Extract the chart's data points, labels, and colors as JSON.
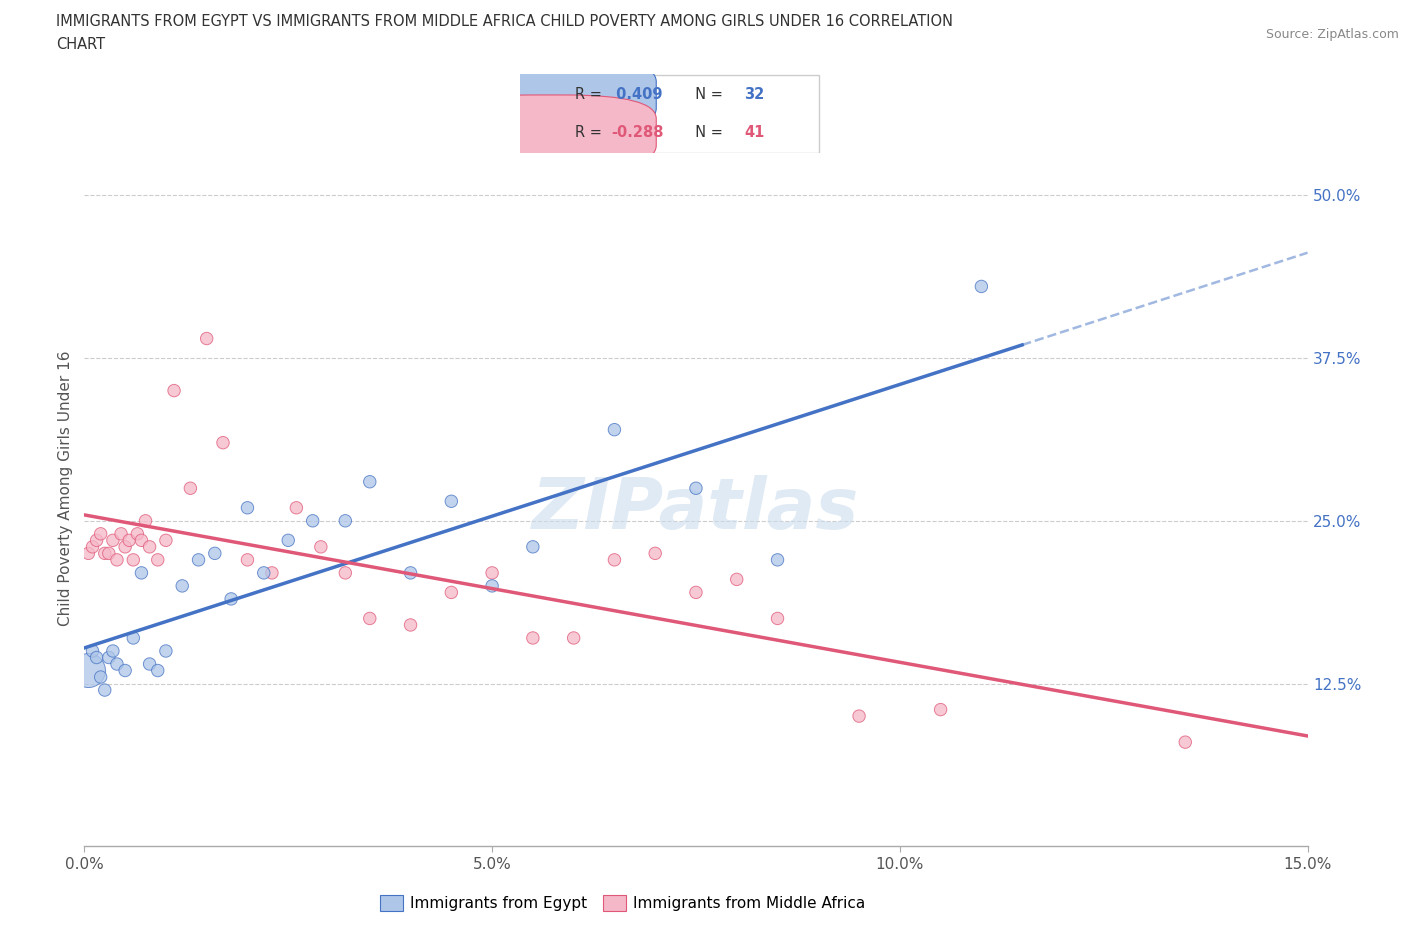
{
  "title_line1": "IMMIGRANTS FROM EGYPT VS IMMIGRANTS FROM MIDDLE AFRICA CHILD POVERTY AMONG GIRLS UNDER 16 CORRELATION",
  "title_line2": "CHART",
  "source": "Source: ZipAtlas.com",
  "ylabel": "Child Poverty Among Girls Under 16",
  "xlim": [
    0.0,
    15.0
  ],
  "ylim": [
    0.0,
    55.0
  ],
  "xticks": [
    0.0,
    5.0,
    10.0,
    15.0
  ],
  "xticklabels": [
    "0.0%",
    "5.0%",
    "10.0%",
    "15.0%"
  ],
  "yticks": [
    12.5,
    25.0,
    37.5,
    50.0
  ],
  "yticklabels": [
    "12.5%",
    "25.0%",
    "37.5%",
    "50.0%"
  ],
  "r_egypt": 0.409,
  "n_egypt": 32,
  "r_africa": -0.288,
  "n_africa": 41,
  "color_egypt": "#aec6e8",
  "color_africa": "#f5b8c8",
  "trend_color_egypt": "#4472c4",
  "trend_color_africa": "#e05878",
  "watermark": "ZIPatlas",
  "watermark_color": "#ccdded",
  "egypt_x": [
    0.05,
    0.1,
    0.15,
    0.2,
    0.25,
    0.3,
    0.35,
    0.4,
    0.5,
    0.6,
    0.7,
    0.8,
    0.9,
    1.0,
    1.2,
    1.4,
    1.6,
    1.8,
    2.0,
    2.2,
    2.5,
    2.8,
    3.2,
    3.5,
    4.0,
    4.5,
    5.0,
    5.5,
    6.5,
    7.5,
    8.5,
    11.0
  ],
  "egypt_y": [
    13.5,
    15.0,
    14.5,
    13.0,
    12.0,
    14.5,
    15.0,
    14.0,
    13.5,
    16.0,
    21.0,
    14.0,
    13.5,
    15.0,
    20.0,
    22.0,
    22.5,
    19.0,
    26.0,
    21.0,
    23.5,
    25.0,
    25.0,
    28.0,
    21.0,
    26.5,
    20.0,
    23.0,
    32.0,
    27.5,
    22.0,
    43.0
  ],
  "egypt_size": [
    600,
    80,
    80,
    80,
    80,
    80,
    80,
    80,
    80,
    80,
    80,
    80,
    80,
    80,
    80,
    80,
    80,
    80,
    80,
    80,
    80,
    80,
    80,
    80,
    80,
    80,
    80,
    80,
    80,
    80,
    80,
    80
  ],
  "africa_x": [
    0.05,
    0.1,
    0.15,
    0.2,
    0.25,
    0.3,
    0.35,
    0.4,
    0.45,
    0.5,
    0.55,
    0.6,
    0.65,
    0.7,
    0.75,
    0.8,
    0.9,
    1.0,
    1.1,
    1.3,
    1.5,
    1.7,
    2.0,
    2.3,
    2.6,
    2.9,
    3.2,
    3.5,
    4.0,
    4.5,
    5.0,
    5.5,
    6.0,
    6.5,
    7.0,
    7.5,
    8.0,
    8.5,
    9.5,
    10.5,
    13.5
  ],
  "africa_y": [
    22.5,
    23.0,
    23.5,
    24.0,
    22.5,
    22.5,
    23.5,
    22.0,
    24.0,
    23.0,
    23.5,
    22.0,
    24.0,
    23.5,
    25.0,
    23.0,
    22.0,
    23.5,
    35.0,
    27.5,
    39.0,
    31.0,
    22.0,
    21.0,
    26.0,
    23.0,
    21.0,
    17.5,
    17.0,
    19.5,
    21.0,
    16.0,
    16.0,
    22.0,
    22.5,
    19.5,
    20.5,
    17.5,
    10.0,
    10.5,
    8.0
  ],
  "africa_size": [
    80,
    80,
    80,
    80,
    80,
    80,
    80,
    80,
    80,
    80,
    80,
    80,
    80,
    80,
    80,
    80,
    80,
    80,
    80,
    80,
    80,
    80,
    80,
    80,
    80,
    80,
    80,
    80,
    80,
    80,
    80,
    80,
    80,
    80,
    80,
    80,
    80,
    80,
    80,
    80,
    80
  ],
  "legend_blue_text": "R =  0.409   N = 32",
  "legend_pink_text": "R = -0.288   N = 41",
  "bottom_legend_egypt": "Immigrants from Egypt",
  "bottom_legend_africa": "Immigrants from Middle Africa",
  "background_color": "#ffffff"
}
